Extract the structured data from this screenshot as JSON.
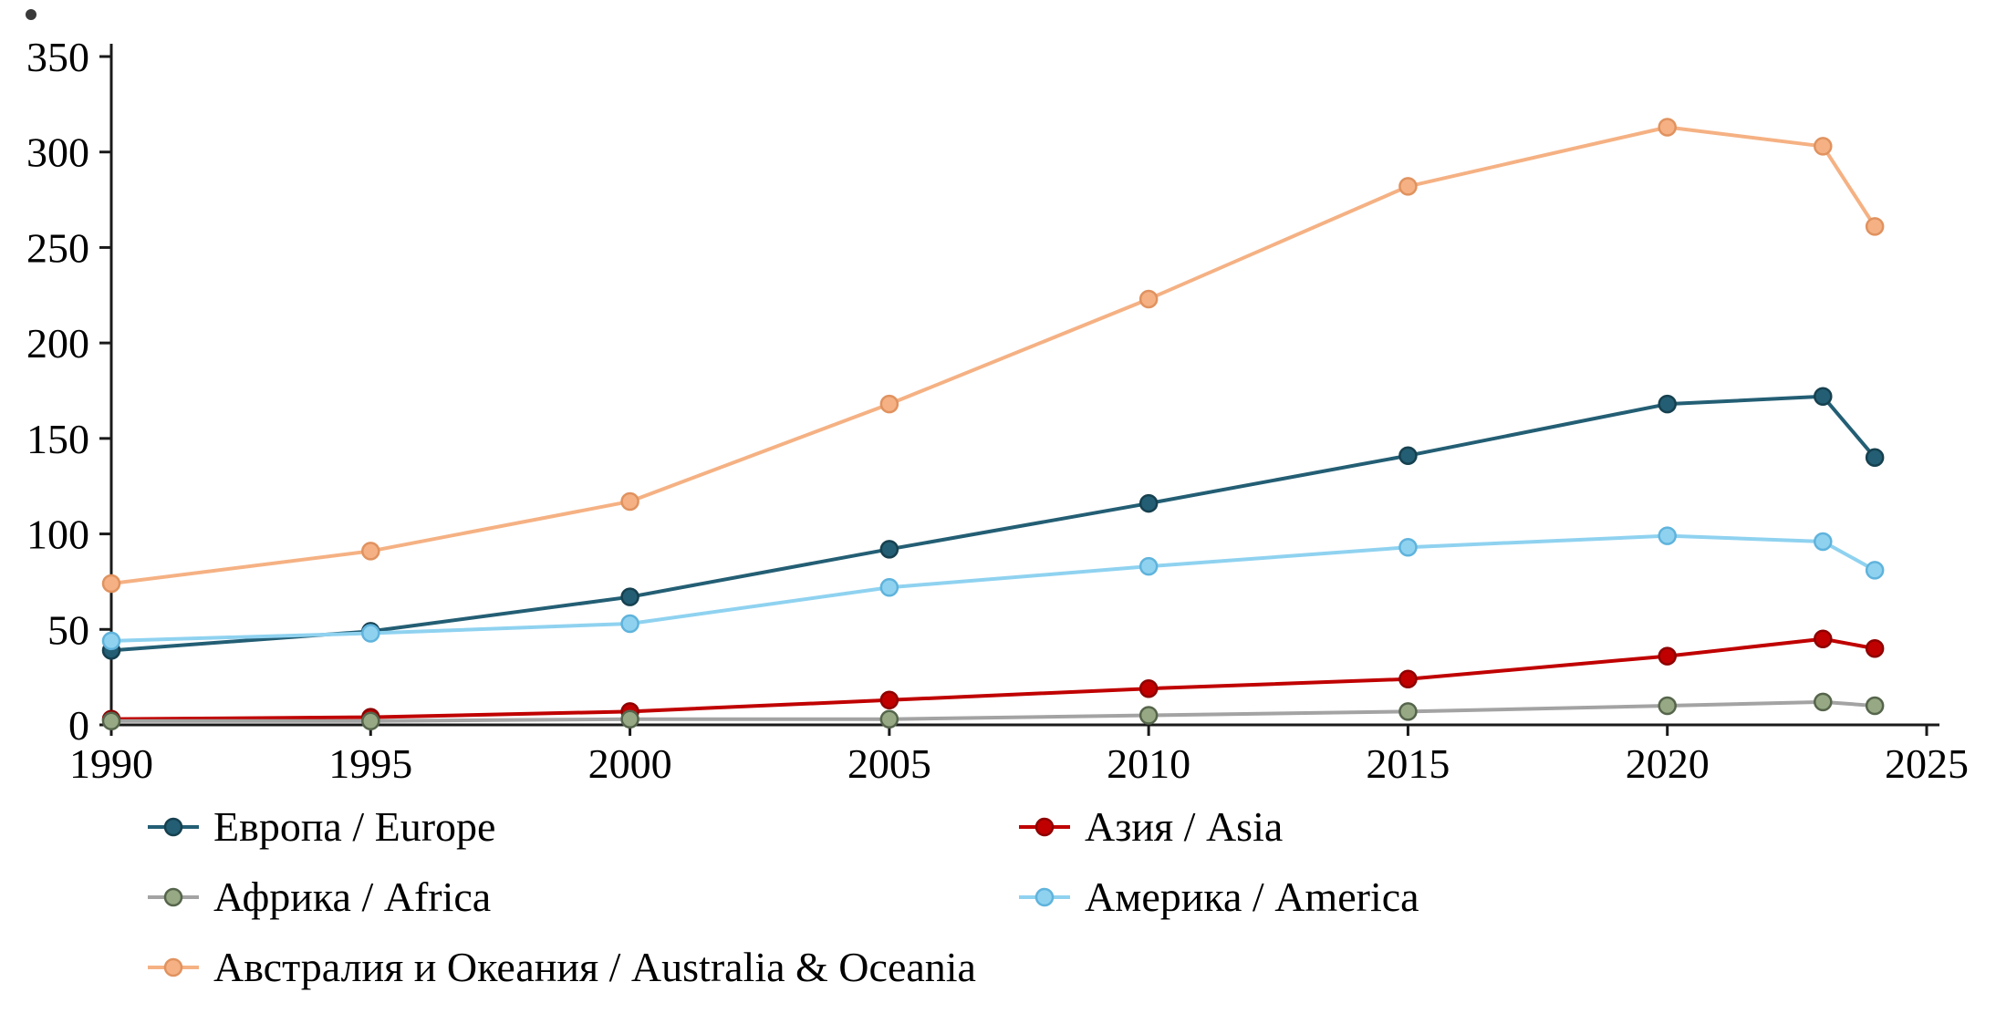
{
  "chart_data": {
    "type": "line",
    "x": [
      1990,
      1995,
      2000,
      2005,
      2010,
      2015,
      2020,
      2023,
      2024
    ],
    "series": [
      {
        "name": "Европа / Europe",
        "color": "#235E74",
        "marker_fill": "#235E74",
        "marker_stroke": "#16404F",
        "values": [
          39,
          49,
          67,
          92,
          116,
          141,
          168,
          172,
          140
        ]
      },
      {
        "name": "Азия / Asia",
        "color": "#C00000",
        "marker_fill": "#C00000",
        "marker_stroke": "#8E0000",
        "values": [
          3,
          4,
          7,
          13,
          19,
          24,
          36,
          45,
          40
        ]
      },
      {
        "name": "Африка / Africa",
        "color": "#A3A3A3",
        "marker_fill": "#97A885",
        "marker_stroke": "#55654B",
        "values": [
          2,
          2,
          3,
          3,
          5,
          7,
          10,
          12,
          10
        ]
      },
      {
        "name": "Америка / America",
        "color": "#8FD2F0",
        "marker_fill": "#8FD2F0",
        "marker_stroke": "#5FB3DC",
        "values": [
          44,
          48,
          53,
          72,
          83,
          93,
          99,
          96,
          81
        ]
      },
      {
        "name": "Австралия и Океания / Australia & Oceania",
        "color": "#F5B183",
        "marker_fill": "#F5B183",
        "marker_stroke": "#E0925F",
        "values": [
          74,
          91,
          117,
          168,
          223,
          282,
          313,
          303,
          261
        ]
      }
    ],
    "title": "",
    "xlabel": "",
    "ylabel": "",
    "xlim": [
      1990,
      2025
    ],
    "ylim": [
      0,
      350
    ],
    "x_ticks": [
      1990,
      1995,
      2000,
      2005,
      2010,
      2015,
      2020,
      2025
    ],
    "y_ticks": [
      0,
      50,
      100,
      150,
      200,
      250,
      300,
      350
    ],
    "grid": false,
    "legend_position": "bottom",
    "axis_color": "#1A1A1A"
  }
}
